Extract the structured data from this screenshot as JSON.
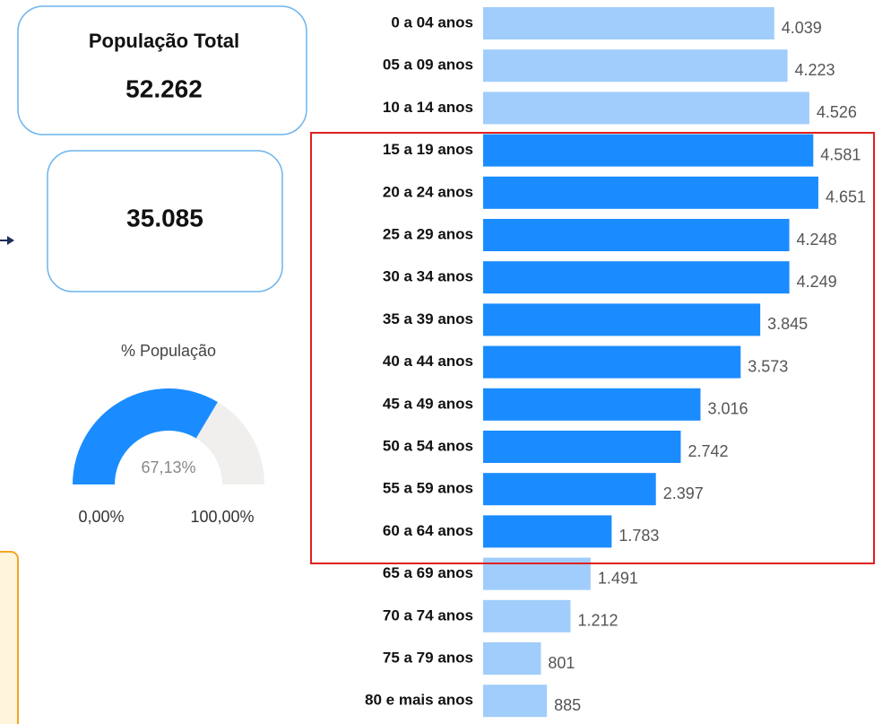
{
  "cards": [
    {
      "title": "População Total",
      "value": "52.262"
    },
    {
      "value": "35.085"
    }
  ],
  "chart_data": [
    {
      "type": "gauge",
      "title": "% População",
      "values": [
        67.13
      ],
      "value_labels": [
        "67,13%"
      ],
      "ylim": [
        0,
        100
      ],
      "yticks": [
        {
          "value": 0,
          "label": "0,00%"
        },
        {
          "value": 100,
          "label": "100,00%"
        }
      ],
      "color": "#1a8cff",
      "track_color": "#f0efee"
    },
    {
      "type": "hbar",
      "categories": [
        "0 a 04 anos",
        "05 a 09 anos",
        "10 a 14 anos",
        "15 a 19 anos",
        "20 a 24 anos",
        "25 a 29 anos",
        "30 a 34 anos",
        "35 a 39 anos",
        "40 a 44 anos",
        "45 a 49 anos",
        "50 a 54 anos",
        "55 a 59 anos",
        "60 a 64 anos",
        "65 a 69 anos",
        "70 a 74 anos",
        "75 a 79 anos",
        "80 e mais anos"
      ],
      "values": [
        4039,
        4223,
        4526,
        4581,
        4651,
        4248,
        4249,
        3845,
        3573,
        3016,
        2742,
        2397,
        1783,
        1491,
        1212,
        801,
        885
      ],
      "value_labels": [
        "4.039",
        "4.223",
        "4.526",
        "4.581",
        "4.651",
        "4.248",
        "4.249",
        "3.845",
        "3.573",
        "3.016",
        "2.742",
        "2.397",
        "1.783",
        "1.491",
        "1.212",
        "801",
        "885"
      ],
      "colors": [
        "#a0cdfb",
        "#a0cdfb",
        "#a0cdfb",
        "#1a8cff",
        "#1a8cff",
        "#1a8cff",
        "#1a8cff",
        "#1a8cff",
        "#1a8cff",
        "#1a8cff",
        "#1a8cff",
        "#1a8cff",
        "#1a8cff",
        "#a0cdfb",
        "#a0cdfb",
        "#a0cdfb",
        "#a0cdfb"
      ],
      "xlim": [
        0,
        5000
      ]
    }
  ]
}
